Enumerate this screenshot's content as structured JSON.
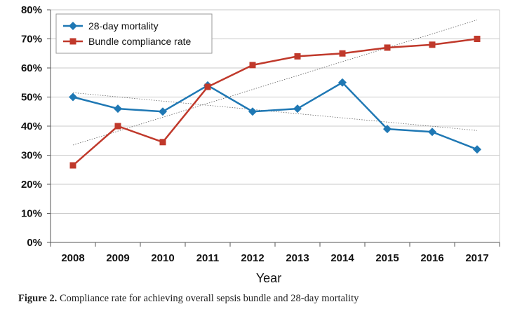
{
  "chart_data": {
    "type": "line",
    "title": "",
    "xlabel": "Year",
    "ylabel": "",
    "categories": [
      "2008",
      "2009",
      "2010",
      "2011",
      "2012",
      "2013",
      "2014",
      "2015",
      "2016",
      "2017"
    ],
    "ylim": [
      0,
      80
    ],
    "yticks": [
      0,
      10,
      20,
      30,
      40,
      50,
      60,
      70,
      80
    ],
    "ytick_labels": [
      "0%",
      "10%",
      "20%",
      "30%",
      "40%",
      "50%",
      "60%",
      "70%",
      "80%"
    ],
    "grid": true,
    "legend": "top-left",
    "series": [
      {
        "name": "28-day mortality",
        "color": "#1f78b4",
        "marker": "diamond",
        "values": [
          50,
          46,
          45,
          54,
          45,
          46,
          55,
          39,
          38,
          32
        ],
        "trendline": [
          51.5,
          38.5
        ]
      },
      {
        "name": "Bundle compliance rate",
        "color": "#c0392b",
        "marker": "square",
        "values": [
          26.5,
          40,
          34.5,
          53.5,
          61,
          64,
          65,
          67,
          68,
          70
        ],
        "trendline": [
          33.5,
          76.5
        ]
      }
    ]
  },
  "caption": {
    "label": "Figure 2.",
    "text": " Compliance rate for achieving overall sepsis bundle and 28-day mortality"
  }
}
